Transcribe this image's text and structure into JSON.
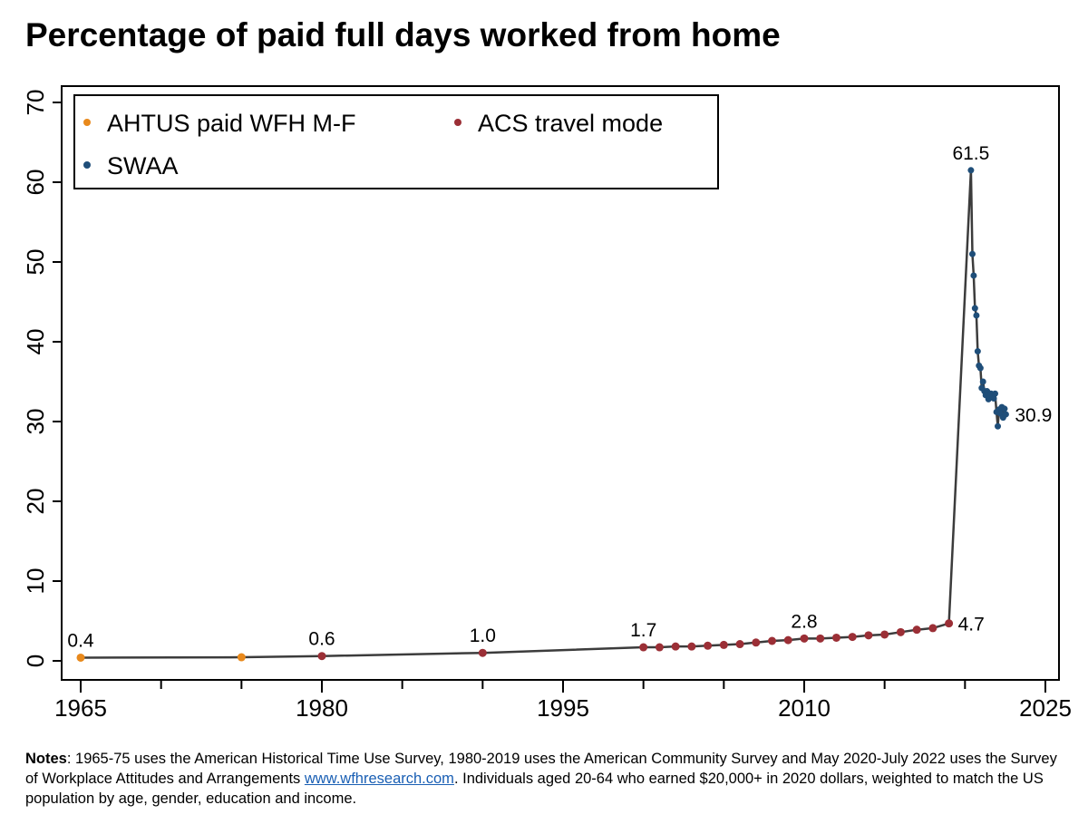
{
  "title": "Percentage of paid full days worked from home",
  "notes": {
    "label": "Notes",
    "text1": ": 1965-75 uses the American Historical Time Use Survey, 1980-2019 uses the American Community Survey and May 2020-July 2022 uses the Survey of Workplace Attitudes and Arrangements ",
    "link": "www.wfhresearch.com",
    "text2": ". Individuals aged 20-64 who earned $20,000+ in 2020 dollars, weighted to match the US population by age, gender, education and income."
  },
  "chart_data": {
    "type": "line",
    "title": "Percentage of paid full days worked from home",
    "xlim": [
      1965,
      2025
    ],
    "ylim": [
      0,
      70
    ],
    "xticks": [
      1965,
      1980,
      1995,
      2010,
      2025
    ],
    "yticks": [
      0,
      10,
      20,
      30,
      40,
      50,
      60,
      70
    ],
    "legend_placement": "top-left",
    "series": [
      {
        "name": "AHTUS paid WFH M-F",
        "color": "#e8891c",
        "x": [
          1965,
          1975
        ],
        "y": [
          0.4,
          0.45
        ]
      },
      {
        "name": "ACS travel mode",
        "color": "#9b2f36",
        "x": [
          1980,
          1990,
          2000,
          2001,
          2002,
          2003,
          2004,
          2005,
          2006,
          2007,
          2008,
          2009,
          2010,
          2011,
          2012,
          2013,
          2014,
          2015,
          2016,
          2017,
          2018,
          2019
        ],
        "y": [
          0.6,
          1.0,
          1.7,
          1.7,
          1.8,
          1.8,
          1.9,
          2.0,
          2.1,
          2.3,
          2.5,
          2.6,
          2.8,
          2.8,
          2.9,
          3.0,
          3.2,
          3.3,
          3.6,
          3.9,
          4.1,
          4.7
        ]
      },
      {
        "name": "SWAA",
        "color": "#1f4e79",
        "x": [
          2020.37,
          2020.46,
          2020.54,
          2020.62,
          2020.71,
          2020.79,
          2020.87,
          2020.96,
          2021.04,
          2021.12,
          2021.21,
          2021.29,
          2021.37,
          2021.46,
          2021.54,
          2021.62,
          2021.71,
          2021.79,
          2021.87,
          2021.96,
          2022.04,
          2022.12,
          2022.21,
          2022.29,
          2022.37,
          2022.46,
          2022.54
        ],
        "y": [
          61.5,
          51.0,
          48.3,
          44.2,
          43.3,
          38.8,
          37.0,
          36.7,
          34.2,
          35.0,
          33.8,
          33.3,
          33.8,
          32.8,
          33.3,
          33.5,
          33.2,
          32.9,
          33.5,
          31.2,
          29.4,
          31.5,
          31.0,
          31.8,
          30.5,
          31.6,
          30.9
        ]
      }
    ],
    "labels": [
      {
        "x": 1965,
        "y": 0.4,
        "text": "0.4"
      },
      {
        "x": 1980,
        "y": 0.6,
        "text": "0.6"
      },
      {
        "x": 1990,
        "y": 1.0,
        "text": "1.0"
      },
      {
        "x": 2000,
        "y": 1.7,
        "text": "1.7"
      },
      {
        "x": 2010,
        "y": 2.8,
        "text": "2.8"
      },
      {
        "x": 2019,
        "y": 4.7,
        "text": "4.7",
        "pos": "right"
      },
      {
        "x": 2020.37,
        "y": 61.5,
        "text": "61.5"
      },
      {
        "x": 2022.54,
        "y": 30.9,
        "text": "30.9",
        "pos": "right"
      }
    ]
  }
}
